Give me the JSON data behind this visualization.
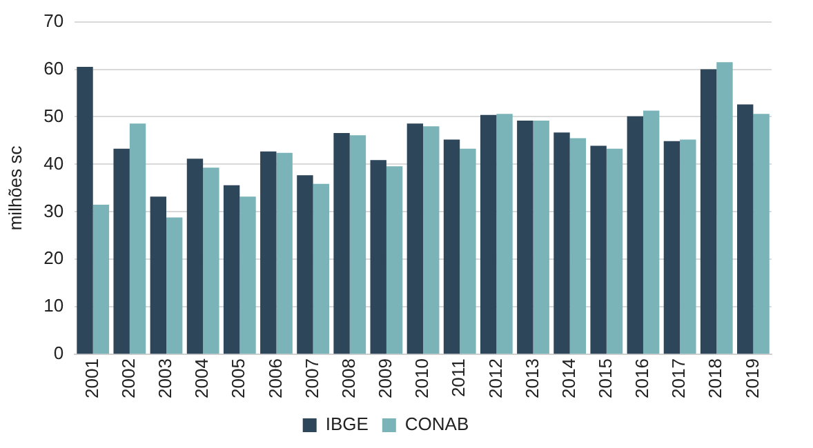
{
  "chart_data": {
    "type": "bar",
    "ylabel": "milhões sc",
    "categories": [
      "2001",
      "2002",
      "2003",
      "2004",
      "2005",
      "2006",
      "2007",
      "2008",
      "2009",
      "2010",
      "2011",
      "2012",
      "2013",
      "2014",
      "2015",
      "2016",
      "2017",
      "2018",
      "2019"
    ],
    "series": [
      {
        "name": "IBGE",
        "color": "#2e4659",
        "values": [
          60.5,
          43.3,
          33.2,
          41.2,
          35.6,
          42.7,
          37.7,
          46.6,
          40.9,
          48.6,
          45.2,
          50.4,
          49.2,
          46.7,
          43.9,
          50.1,
          44.9,
          60.0,
          52.6
        ]
      },
      {
        "name": "CONAB",
        "color": "#7ab3b8",
        "values": [
          31.5,
          48.6,
          28.8,
          39.3,
          33.2,
          42.4,
          35.9,
          46.1,
          39.6,
          48.0,
          43.3,
          50.6,
          49.2,
          45.5,
          43.3,
          51.3,
          45.2,
          61.5,
          50.6
        ]
      }
    ],
    "ylim": [
      0,
      70
    ],
    "yticks": [
      0,
      10,
      20,
      30,
      40,
      50,
      60,
      70
    ],
    "grid": "y",
    "legend": "bottom"
  }
}
